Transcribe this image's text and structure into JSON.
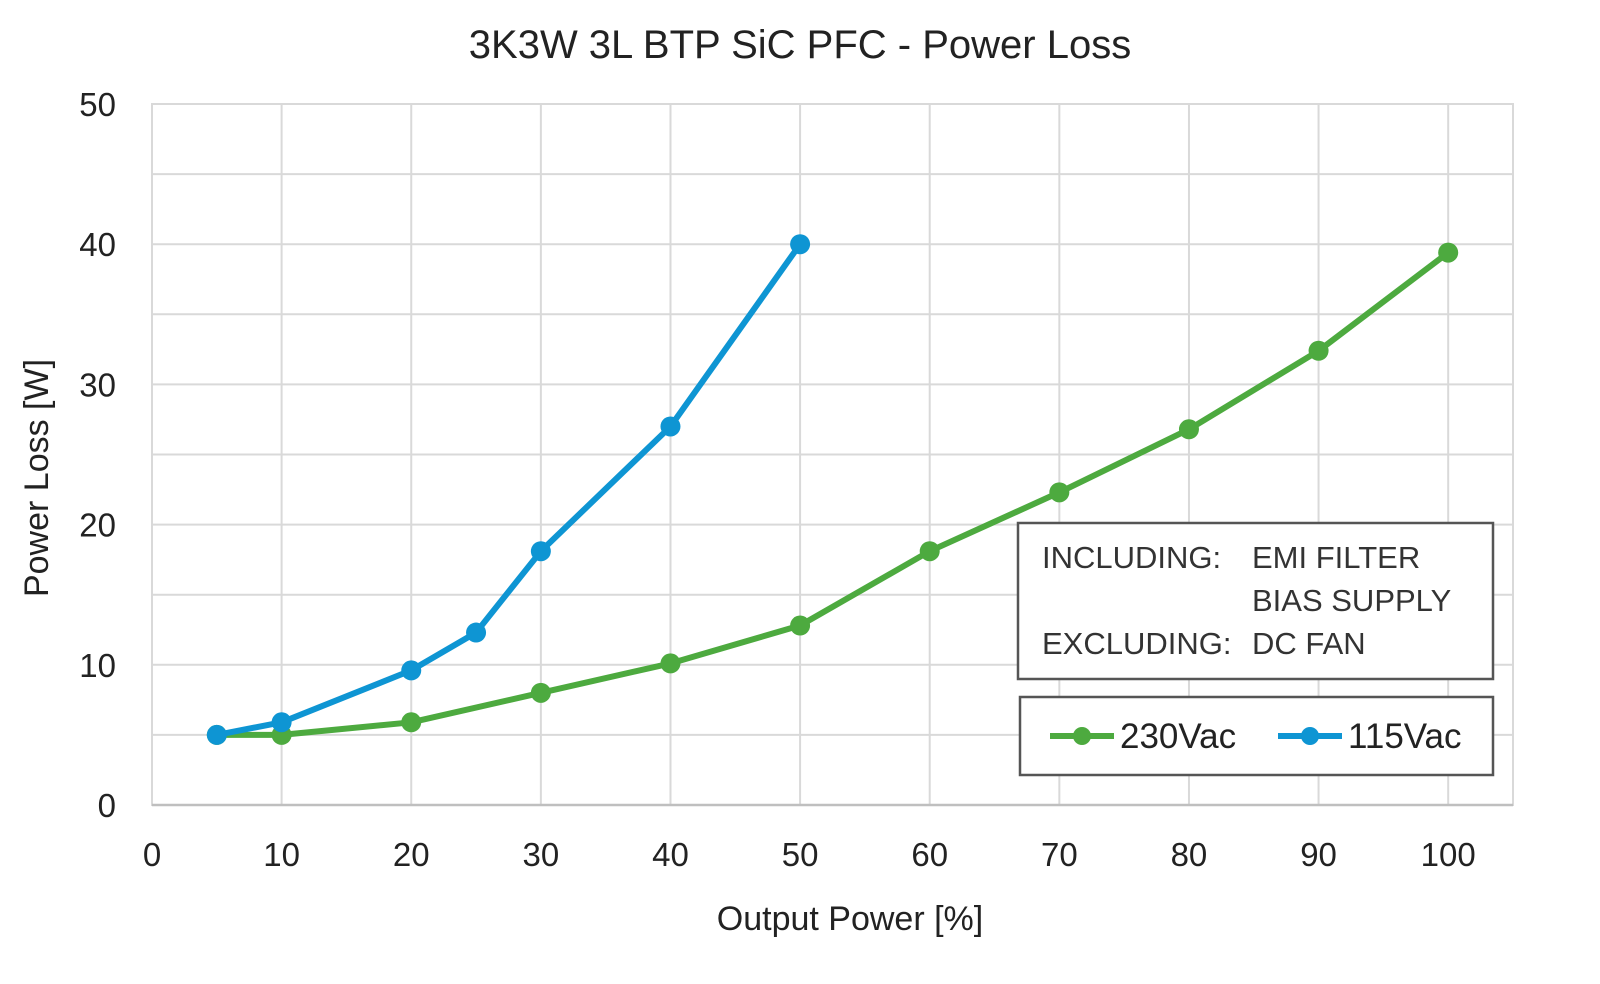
{
  "chart_data": {
    "type": "line",
    "title": {
      "prefix": "3K3W 3L BTP SiC PFC - ",
      "emphasis": "Power Loss"
    },
    "xlabel": "Output Power [%]",
    "ylabel": "Power Loss [W]",
    "xlim": [
      0,
      105
    ],
    "ylim": [
      0,
      50
    ],
    "xticks": [
      0,
      10,
      20,
      30,
      40,
      50,
      60,
      70,
      80,
      90,
      100
    ],
    "yticks": [
      0,
      10,
      20,
      30,
      40,
      50
    ],
    "grid": true,
    "legend_position": "bottom-right",
    "series": [
      {
        "name": "230Vac",
        "color": "#4daa3f",
        "x": [
          5,
          10,
          20,
          30,
          40,
          50,
          60,
          70,
          80,
          90,
          100
        ],
        "y": [
          5.0,
          5.0,
          5.9,
          8.0,
          10.1,
          12.8,
          18.1,
          22.3,
          26.8,
          32.4,
          39.4
        ]
      },
      {
        "name": "115Vac",
        "color": "#0e95d3",
        "x": [
          5,
          10,
          20,
          25,
          30,
          40,
          50
        ],
        "y": [
          5.0,
          5.9,
          9.6,
          12.3,
          18.1,
          27.0,
          40.0
        ]
      }
    ],
    "annotation": {
      "including_label": "INCLUDING:",
      "including_items": [
        "EMI FILTER",
        "BIAS SUPPLY"
      ],
      "excluding_label": "EXCLUDING:",
      "excluding_items": [
        "DC FAN"
      ]
    }
  }
}
